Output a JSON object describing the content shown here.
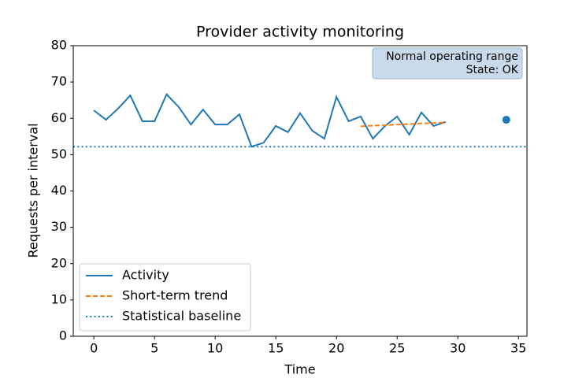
{
  "chart_data": {
    "type": "line",
    "title": "Provider activity monitoring",
    "xlabel": "Time",
    "ylabel": "Requests per interval",
    "xlim": [
      -1.7,
      35.7
    ],
    "ylim": [
      0,
      80
    ],
    "xticks": [
      0,
      5,
      10,
      15,
      20,
      25,
      30,
      35
    ],
    "yticks": [
      0,
      10,
      20,
      30,
      40,
      50,
      60,
      70,
      80
    ],
    "series": [
      {
        "name": "Activity",
        "color": "#1f77b4",
        "style": "solid",
        "x": [
          0,
          1,
          2,
          3,
          4,
          5,
          6,
          7,
          8,
          9,
          10,
          11,
          12,
          13,
          14,
          15,
          16,
          17,
          18,
          19,
          20,
          21,
          22,
          23,
          24,
          25,
          26,
          27,
          28,
          29
        ],
        "values": [
          62.2,
          59.6,
          62.7,
          66.3,
          59.2,
          59.2,
          66.6,
          63.1,
          58.3,
          62.4,
          58.3,
          58.3,
          61.1,
          52.2,
          53.3,
          57.9,
          56.2,
          61.4,
          56.6,
          54.4,
          65.9,
          59.2,
          60.5,
          54.4,
          57.9,
          60.5,
          55.5,
          61.6,
          57.9,
          59.0
        ]
      },
      {
        "name": "Short-term trend",
        "color": "#ff7f0e",
        "style": "dashed",
        "x": [
          22,
          23,
          24,
          25,
          26,
          27,
          28,
          29
        ],
        "values": [
          57.8,
          58.0,
          58.1,
          58.3,
          58.4,
          58.6,
          58.7,
          58.9
        ]
      },
      {
        "name": "Statistical baseline",
        "color": "#1f77b4",
        "style": "dotted",
        "kind": "hline",
        "values": [
          52.2
        ]
      }
    ],
    "marker": {
      "x": 34,
      "y": 59.6,
      "color": "#1f77b4"
    },
    "annotation": [
      "Normal operating range",
      "State: OK"
    ],
    "legend": "lower left"
  }
}
